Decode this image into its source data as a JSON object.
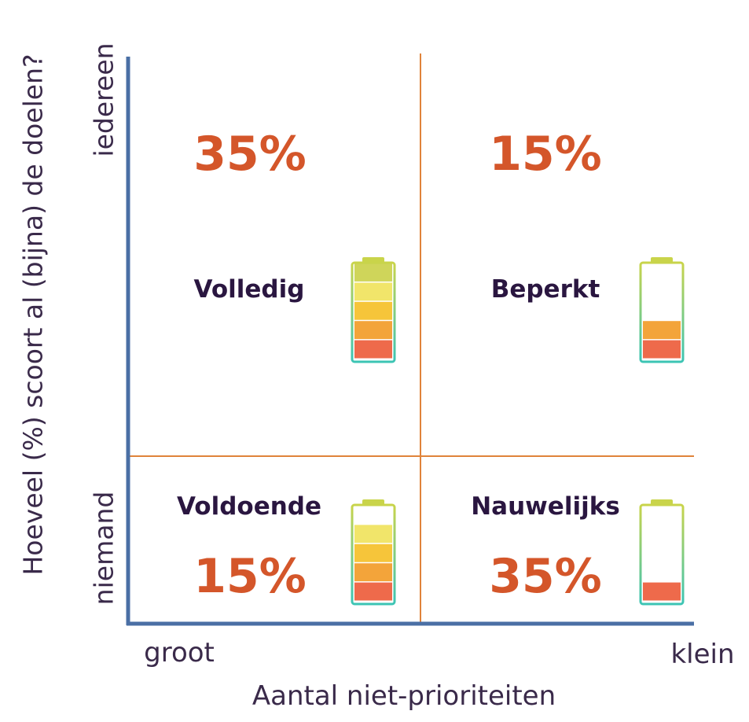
{
  "axes": {
    "y_label": "Hoeveel (%) scoort al (bijna) de doelen?",
    "y_top": "iedereen",
    "y_bottom": "niemand",
    "x_label": "Aantal niet-prioriteiten",
    "x_left": "groot",
    "x_right": "klein"
  },
  "quadrants": [
    {
      "id": "top-left",
      "label": "Volledig",
      "percent": "35%",
      "battery_level": 5
    },
    {
      "id": "top-right",
      "label": "Beperkt",
      "percent": "15%",
      "battery_level": 2
    },
    {
      "id": "bottom-left",
      "label": "Voldoende",
      "percent": "15%",
      "battery_level": 4
    },
    {
      "id": "bottom-right",
      "label": "Nauwelijks",
      "percent": "35%",
      "battery_level": 1
    }
  ],
  "colors": {
    "axis": "#4a6fa5",
    "divider": "#e0833a",
    "percent": "#d4562a",
    "label": "#2a1640",
    "battery_segments": [
      "#ee6a4b",
      "#f3a43a",
      "#f6c53a",
      "#f1e56a",
      "#cfd55a"
    ]
  }
}
